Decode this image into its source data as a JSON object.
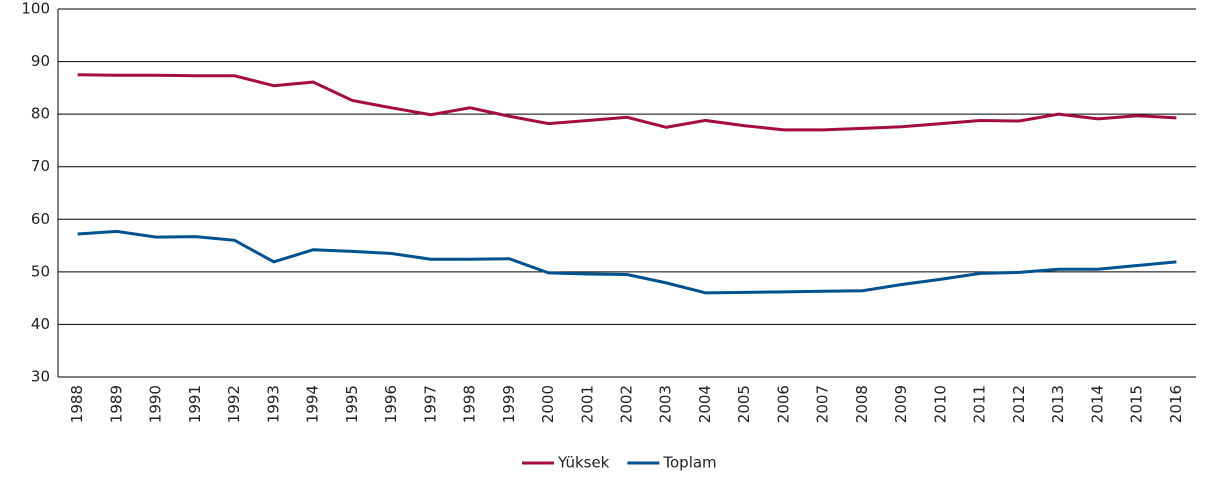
{
  "chart_data": {
    "type": "line",
    "categories": [
      "1988",
      "1989",
      "1990",
      "1991",
      "1992",
      "1993",
      "1994",
      "1995",
      "1996",
      "1997",
      "1998",
      "1999",
      "2000",
      "2001",
      "2002",
      "2003",
      "2004",
      "2005",
      "2006",
      "2007",
      "2008",
      "2009",
      "2010",
      "2011",
      "2012",
      "2013",
      "2014",
      "2015",
      "2016"
    ],
    "series": [
      {
        "name": "Yüksek",
        "color": "#a50d42",
        "values": [
          87.5,
          87.4,
          87.4,
          87.3,
          87.3,
          85.4,
          86.1,
          82.6,
          81.2,
          79.9,
          81.2,
          79.6,
          78.2,
          78.8,
          79.4,
          77.5,
          78.8,
          77.8,
          77.0,
          77.0,
          77.3,
          77.6,
          78.2,
          78.8,
          78.7,
          80.0,
          79.1,
          79.7,
          79.3
        ]
      },
      {
        "name": "Toplam",
        "color": "#00518f",
        "values": [
          57.2,
          57.7,
          56.6,
          56.7,
          56.0,
          51.9,
          54.2,
          53.9,
          53.5,
          52.4,
          52.4,
          52.5,
          49.8,
          49.6,
          49.5,
          47.9,
          46.0,
          46.1,
          46.2,
          46.3,
          46.4,
          47.6,
          48.6,
          49.7,
          49.9,
          50.5,
          50.5,
          51.2,
          51.9
        ]
      }
    ],
    "ylim": [
      30,
      100
    ],
    "yticks": [
      30,
      40,
      50,
      60,
      70,
      80,
      90,
      100
    ],
    "grid": true,
    "legend": "bottom"
  }
}
